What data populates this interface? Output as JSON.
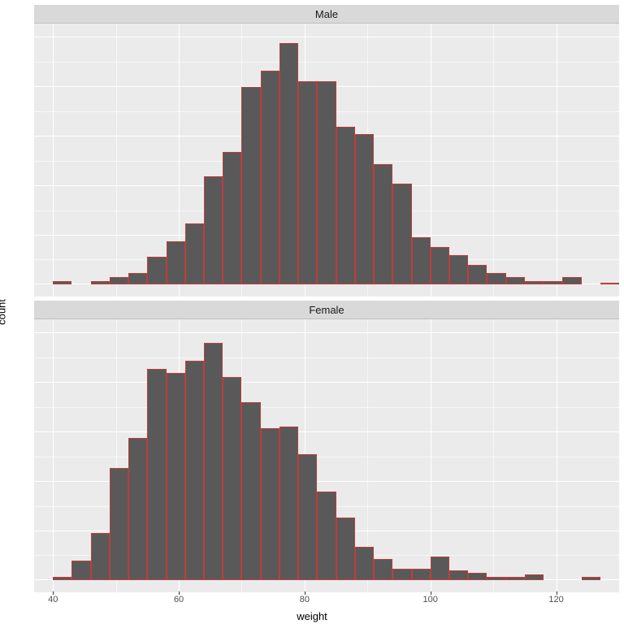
{
  "chart": {
    "type": "histogram",
    "facets": [
      "Male",
      "Female"
    ],
    "x_label": "weight",
    "y_label": "count",
    "background_color": "#ebebeb",
    "strip_background": "#d9d9d9",
    "grid_color": "#ffffff",
    "bar_fill": "#595959",
    "bar_border": "#be3d3d",
    "label_fontsize": 13,
    "tick_fontsize": 11,
    "xlim": [
      37,
      130
    ],
    "ylim": [
      -6,
      132
    ],
    "x_ticks": [
      40,
      60,
      80,
      100,
      120
    ],
    "y_ticks": [
      0,
      25,
      50,
      75,
      100,
      125
    ],
    "bin_width": 3,
    "bin_start": 40,
    "panels": {
      "Male": {
        "label": "Male",
        "values": [
          2,
          0,
          2,
          4,
          6,
          14,
          22,
          31,
          55,
          67,
          100,
          108,
          122,
          103,
          103,
          80,
          76,
          61,
          51,
          24,
          19,
          15,
          10,
          6,
          4,
          2,
          2,
          4,
          0,
          1
        ]
      },
      "Female": {
        "label": "Female",
        "values": [
          2,
          10,
          24,
          57,
          72,
          107,
          105,
          111,
          120,
          103,
          90,
          77,
          78,
          64,
          45,
          32,
          17,
          11,
          6,
          6,
          12,
          5,
          4,
          2,
          2,
          3,
          0,
          0,
          2,
          0
        ]
      }
    }
  }
}
